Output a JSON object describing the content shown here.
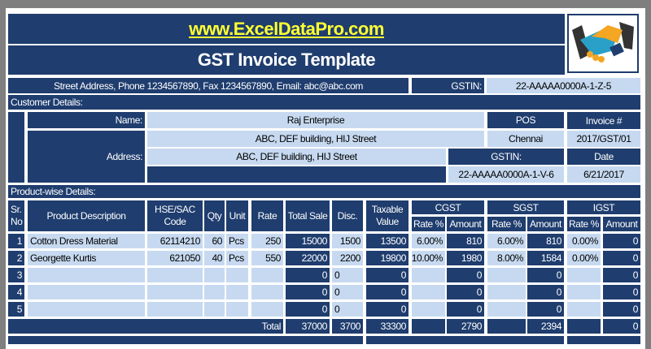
{
  "header": {
    "website": "www.ExcelDataPro.com",
    "title": "GST Invoice Template",
    "address_line": "Street Address, Phone 1234567890, Fax 1234567890, Email: abc@abc.com",
    "gstin_label": "GSTIN:",
    "gstin_value": "22-AAAAA0000A-1-Z-5",
    "logo_icon": "handshake-icon"
  },
  "customer": {
    "section_label": "Customer Details:",
    "name_label": "Name:",
    "name": "Raj Enterprise",
    "address_label": "Address:",
    "address1": "ABC, DEF building, HIJ Street",
    "address2": "ABC, DEF building, HIJ Street",
    "address3": "",
    "pos_label": "POS",
    "pos": "Chennai",
    "gstin_label": "GSTIN:",
    "gstin": "22-AAAAA0000A-1-V-6",
    "invoice_label": "Invoice #",
    "invoice_no": "2017/GST/01",
    "date_label": "Date",
    "date": "6/21/2017"
  },
  "products": {
    "section_label": "Product-wise Details:",
    "headers": {
      "sr": "Sr. No",
      "desc": "Product Description",
      "code": "HSE/SAC Code",
      "qty": "Qty",
      "unit": "Unit",
      "rate": "Rate",
      "total": "Total Sale",
      "disc": "Disc.",
      "taxable": "Taxable Value",
      "cgst": "CGST",
      "sgst": "SGST",
      "igst": "IGST",
      "rate_pct": "Rate %",
      "amount": "Amount"
    },
    "rows": [
      {
        "sr": "1",
        "desc": "Cotton Dress Material",
        "code": "62114210",
        "qty": "60",
        "unit": "Pcs",
        "rate": "250",
        "total": "15000",
        "disc": "1500",
        "taxable": "13500",
        "cgst_rate": "6.00%",
        "cgst_amt": "810",
        "sgst_rate": "6.00%",
        "sgst_amt": "810",
        "igst_rate": "0.00%",
        "igst_amt": "0"
      },
      {
        "sr": "2",
        "desc": "Georgette Kurtis",
        "code": "621050",
        "qty": "40",
        "unit": "Pcs",
        "rate": "550",
        "total": "22000",
        "disc": "2200",
        "taxable": "19800",
        "cgst_rate": "10.00%",
        "cgst_amt": "1980",
        "sgst_rate": "8.00%",
        "sgst_amt": "1584",
        "igst_rate": "0.00%",
        "igst_amt": "0"
      },
      {
        "sr": "3",
        "desc": "",
        "code": "",
        "qty": "",
        "unit": "",
        "rate": "",
        "total": "0",
        "disc": "0",
        "taxable": "0",
        "cgst_rate": "",
        "cgst_amt": "0",
        "sgst_rate": "",
        "sgst_amt": "0",
        "igst_rate": "",
        "igst_amt": "0"
      },
      {
        "sr": "4",
        "desc": "",
        "code": "",
        "qty": "",
        "unit": "",
        "rate": "",
        "total": "0",
        "disc": "0",
        "taxable": "0",
        "cgst_rate": "",
        "cgst_amt": "0",
        "sgst_rate": "",
        "sgst_amt": "0",
        "igst_rate": "",
        "igst_amt": "0"
      },
      {
        "sr": "5",
        "desc": "",
        "code": "",
        "qty": "",
        "unit": "",
        "rate": "",
        "total": "0",
        "disc": "0",
        "taxable": "0",
        "cgst_rate": "",
        "cgst_amt": "0",
        "sgst_rate": "",
        "sgst_amt": "0",
        "igst_rate": "",
        "igst_amt": "0"
      }
    ],
    "totals": {
      "label": "Total",
      "total": "37000",
      "disc": "3700",
      "taxable": "33300",
      "cgst_amt": "2790",
      "sgst_amt": "2394",
      "igst_amt": "0"
    }
  },
  "colors": {
    "dark": "#1f3d6e",
    "light": "#c6d9f0",
    "website": "#ffff33"
  }
}
